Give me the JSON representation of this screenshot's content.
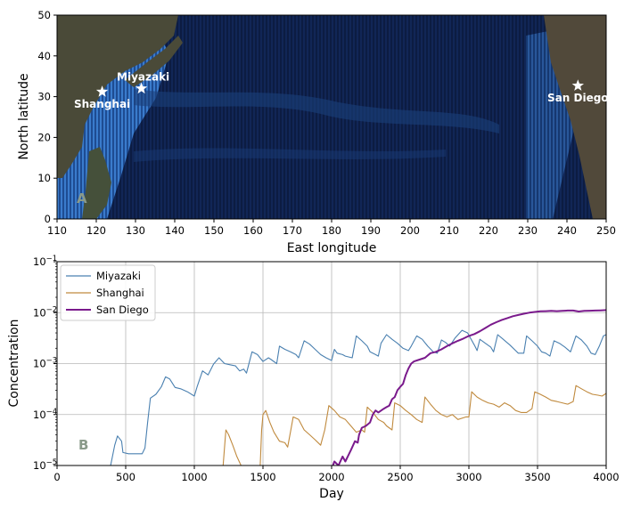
{
  "chart_data": [
    {
      "type": "map",
      "panel_label": "A",
      "xlabel": "East longitude",
      "ylabel": "North latitude",
      "xlim": [
        110,
        250
      ],
      "ylim": [
        0,
        50
      ],
      "xticks": [
        110,
        120,
        130,
        140,
        150,
        160,
        170,
        180,
        190,
        200,
        210,
        220,
        230,
        240,
        250
      ],
      "yticks": [
        0,
        10,
        20,
        30,
        40,
        50
      ],
      "locations": [
        {
          "name": "Miyazaki",
          "lon": 131.5,
          "lat": 32
        },
        {
          "name": "Shanghai",
          "lon": 121.5,
          "lat": 31.2
        },
        {
          "name": "San Diego",
          "lon": 242.8,
          "lat": 32.7
        }
      ],
      "colors": {
        "ocean": "#0b1a3d",
        "current": "#3a7bd5",
        "land": "#4a4a38",
        "marker": "#ffffff"
      }
    },
    {
      "type": "line",
      "panel_label": "B",
      "xlabel": "Day",
      "ylabel": "Concentration",
      "yscale": "log",
      "xlim": [
        0,
        4000
      ],
      "ylim": [
        1e-05,
        0.1
      ],
      "xticks": [
        0,
        500,
        1000,
        1500,
        2000,
        2500,
        3000,
        3500,
        4000
      ],
      "yticks": [
        {
          "value": 1e-05,
          "base": "10",
          "exp": "−5"
        },
        {
          "value": 0.0001,
          "base": "10",
          "exp": "−4"
        },
        {
          "value": 0.001,
          "base": "10",
          "exp": "−3"
        },
        {
          "value": 0.01,
          "base": "10",
          "exp": "−2"
        },
        {
          "value": 0.1,
          "base": "10",
          "exp": "−1"
        }
      ],
      "grid": true,
      "legend_position": "upper-left",
      "series": [
        {
          "name": "Miyazaki",
          "color": "#4a80b0",
          "points": [
            [
              390,
              1e-05
            ],
            [
              420,
              2.5e-05
            ],
            [
              440,
              3.8e-05
            ],
            [
              470,
              3e-05
            ],
            [
              480,
              1.8e-05
            ],
            [
              520,
              1.7e-05
            ],
            [
              560,
              1.7e-05
            ],
            [
              620,
              1.7e-05
            ],
            [
              640,
              2.2e-05
            ],
            [
              660,
              7e-05
            ],
            [
              680,
              0.00021
            ],
            [
              720,
              0.00025
            ],
            [
              760,
              0.00035
            ],
            [
              790,
              0.00055
            ],
            [
              820,
              0.0005
            ],
            [
              860,
              0.00034
            ],
            [
              900,
              0.00032
            ],
            [
              950,
              0.00028
            ],
            [
              1000,
              0.00023
            ],
            [
              1020,
              0.00035
            ],
            [
              1060,
              0.00072
            ],
            [
              1100,
              0.0006
            ],
            [
              1140,
              0.00098
            ],
            [
              1180,
              0.0013
            ],
            [
              1220,
              0.001
            ],
            [
              1260,
              0.00095
            ],
            [
              1300,
              0.0009
            ],
            [
              1330,
              0.00072
            ],
            [
              1360,
              0.00078
            ],
            [
              1380,
              0.00065
            ],
            [
              1420,
              0.0017
            ],
            [
              1460,
              0.0015
            ],
            [
              1500,
              0.0011
            ],
            [
              1540,
              0.0013
            ],
            [
              1560,
              0.0012
            ],
            [
              1600,
              0.001
            ],
            [
              1620,
              0.0022
            ],
            [
              1660,
              0.0019
            ],
            [
              1700,
              0.0017
            ],
            [
              1740,
              0.0015
            ],
            [
              1760,
              0.0013
            ],
            [
              1800,
              0.0028
            ],
            [
              1840,
              0.0024
            ],
            [
              1880,
              0.0019
            ],
            [
              1920,
              0.0015
            ],
            [
              1960,
              0.0013
            ],
            [
              2000,
              0.00115
            ],
            [
              2020,
              0.0019
            ],
            [
              2040,
              0.0016
            ],
            [
              2080,
              0.0015
            ],
            [
              2100,
              0.0014
            ],
            [
              2150,
              0.0013
            ],
            [
              2180,
              0.0035
            ],
            [
              2220,
              0.0028
            ],
            [
              2260,
              0.0022
            ],
            [
              2280,
              0.0017
            ],
            [
              2320,
              0.0015
            ],
            [
              2340,
              0.0014
            ],
            [
              2360,
              0.0025
            ],
            [
              2400,
              0.0037
            ],
            [
              2440,
              0.003
            ],
            [
              2480,
              0.0025
            ],
            [
              2520,
              0.002
            ],
            [
              2560,
              0.0018
            ],
            [
              2580,
              0.0022
            ],
            [
              2620,
              0.0035
            ],
            [
              2660,
              0.003
            ],
            [
              2700,
              0.0022
            ],
            [
              2740,
              0.0017
            ],
            [
              2770,
              0.0016
            ],
            [
              2800,
              0.0029
            ],
            [
              2830,
              0.0026
            ],
            [
              2860,
              0.0022
            ],
            [
              2900,
              0.0032
            ],
            [
              2950,
              0.0045
            ],
            [
              2990,
              0.004
            ],
            [
              3040,
              0.0023
            ],
            [
              3060,
              0.0018
            ],
            [
              3080,
              0.003
            ],
            [
              3120,
              0.0025
            ],
            [
              3160,
              0.0021
            ],
            [
              3180,
              0.0017
            ],
            [
              3210,
              0.0037
            ],
            [
              3250,
              0.003
            ],
            [
              3300,
              0.0023
            ],
            [
              3340,
              0.0018
            ],
            [
              3360,
              0.0016
            ],
            [
              3400,
              0.0016
            ],
            [
              3420,
              0.0035
            ],
            [
              3460,
              0.0028
            ],
            [
              3500,
              0.0022
            ],
            [
              3530,
              0.0017
            ],
            [
              3560,
              0.0016
            ],
            [
              3590,
              0.0014
            ],
            [
              3620,
              0.0028
            ],
            [
              3660,
              0.0025
            ],
            [
              3700,
              0.0021
            ],
            [
              3740,
              0.0017
            ],
            [
              3780,
              0.0035
            ],
            [
              3820,
              0.0029
            ],
            [
              3860,
              0.0022
            ],
            [
              3890,
              0.0016
            ],
            [
              3920,
              0.0015
            ],
            [
              3950,
              0.0022
            ],
            [
              3980,
              0.0035
            ],
            [
              4000,
              0.0037
            ]
          ]
        },
        {
          "name": "Shanghai",
          "color": "#c08a3e",
          "points": [
            [
              1210,
              1e-05
            ],
            [
              1230,
              5e-05
            ],
            [
              1250,
              4e-05
            ],
            [
              1280,
              2.5e-05
            ],
            [
              1310,
              1.5e-05
            ],
            [
              1340,
              1e-05
            ],
            [
              1480,
              1e-05
            ],
            [
              1490,
              5e-05
            ],
            [
              1500,
              0.0001
            ],
            [
              1520,
              0.00012
            ],
            [
              1550,
              7e-05
            ],
            [
              1580,
              4.5e-05
            ],
            [
              1620,
              3e-05
            ],
            [
              1660,
              2.8e-05
            ],
            [
              1680,
              2.3e-05
            ],
            [
              1700,
              4.5e-05
            ],
            [
              1720,
              9e-05
            ],
            [
              1760,
              8e-05
            ],
            [
              1800,
              5e-05
            ],
            [
              1840,
              4e-05
            ],
            [
              1880,
              3.2e-05
            ],
            [
              1920,
              2.5e-05
            ],
            [
              1950,
              5e-05
            ],
            [
              1980,
              0.00015
            ],
            [
              2020,
              0.00012
            ],
            [
              2060,
              9e-05
            ],
            [
              2100,
              8e-05
            ],
            [
              2140,
              6e-05
            ],
            [
              2180,
              4.5e-05
            ],
            [
              2220,
              5e-05
            ],
            [
              2240,
              4.5e-05
            ],
            [
              2260,
              0.00014
            ],
            [
              2300,
              0.00011
            ],
            [
              2340,
              8e-05
            ],
            [
              2380,
              7e-05
            ],
            [
              2400,
              6e-05
            ],
            [
              2440,
              5e-05
            ],
            [
              2460,
              0.00017
            ],
            [
              2500,
              0.00015
            ],
            [
              2540,
              0.00012
            ],
            [
              2580,
              0.0001
            ],
            [
              2620,
              8e-05
            ],
            [
              2660,
              7e-05
            ],
            [
              2680,
              0.00022
            ],
            [
              2720,
              0.00016
            ],
            [
              2760,
              0.00012
            ],
            [
              2800,
              0.0001
            ],
            [
              2840,
              9e-05
            ],
            [
              2880,
              0.0001
            ],
            [
              2920,
              8e-05
            ],
            [
              2980,
              9e-05
            ],
            [
              3000,
              9e-05
            ],
            [
              3020,
              0.00028
            ],
            [
              3060,
              0.00022
            ],
            [
              3100,
              0.00019
            ],
            [
              3140,
              0.00017
            ],
            [
              3180,
              0.00016
            ],
            [
              3220,
              0.00014
            ],
            [
              3260,
              0.00017
            ],
            [
              3300,
              0.00015
            ],
            [
              3340,
              0.00012
            ],
            [
              3380,
              0.00011
            ],
            [
              3420,
              0.00011
            ],
            [
              3460,
              0.00013
            ],
            [
              3480,
              0.00028
            ],
            [
              3520,
              0.00025
            ],
            [
              3560,
              0.00022
            ],
            [
              3600,
              0.00019
            ],
            [
              3640,
              0.00018
            ],
            [
              3680,
              0.00017
            ],
            [
              3720,
              0.00016
            ],
            [
              3760,
              0.00018
            ],
            [
              3780,
              0.00037
            ],
            [
              3820,
              0.00032
            ],
            [
              3860,
              0.00028
            ],
            [
              3900,
              0.00025
            ],
            [
              3940,
              0.00024
            ],
            [
              3970,
              0.00023
            ],
            [
              4000,
              0.00026
            ]
          ]
        },
        {
          "name": "San Diego",
          "color": "#7a1a8c",
          "points": [
            [
              2010,
              1e-05
            ],
            [
              2020,
              1.2e-05
            ],
            [
              2050,
              1e-05
            ],
            [
              2080,
              1.5e-05
            ],
            [
              2100,
              1.2e-05
            ],
            [
              2140,
              2e-05
            ],
            [
              2170,
              3e-05
            ],
            [
              2190,
              2.8e-05
            ],
            [
              2200,
              4e-05
            ],
            [
              2220,
              5.5e-05
            ],
            [
              2250,
              6e-05
            ],
            [
              2280,
              7e-05
            ],
            [
              2300,
              0.0001
            ],
            [
              2320,
              0.00012
            ],
            [
              2340,
              0.00011
            ],
            [
              2380,
              0.00013
            ],
            [
              2400,
              0.00014
            ],
            [
              2420,
              0.00015
            ],
            [
              2440,
              0.0002
            ],
            [
              2460,
              0.00022
            ],
            [
              2480,
              0.0003
            ],
            [
              2500,
              0.00035
            ],
            [
              2520,
              0.0004
            ],
            [
              2540,
              0.0006
            ],
            [
              2560,
              0.0008
            ],
            [
              2580,
              0.001
            ],
            [
              2600,
              0.0011
            ],
            [
              2640,
              0.0012
            ],
            [
              2680,
              0.0013
            ],
            [
              2720,
              0.0016
            ],
            [
              2760,
              0.0017
            ],
            [
              2800,
              0.0019
            ],
            [
              2840,
              0.0022
            ],
            [
              2880,
              0.0025
            ],
            [
              2920,
              0.0028
            ],
            [
              2960,
              0.0031
            ],
            [
              3000,
              0.0035
            ],
            [
              3040,
              0.0038
            ],
            [
              3080,
              0.0043
            ],
            [
              3120,
              0.005
            ],
            [
              3160,
              0.0058
            ],
            [
              3200,
              0.0065
            ],
            [
              3240,
              0.0072
            ],
            [
              3280,
              0.0078
            ],
            [
              3320,
              0.0085
            ],
            [
              3360,
              0.009
            ],
            [
              3400,
              0.0095
            ],
            [
              3440,
              0.01
            ],
            [
              3480,
              0.0103
            ],
            [
              3520,
              0.0106
            ],
            [
              3560,
              0.0107
            ],
            [
              3600,
              0.0108
            ],
            [
              3640,
              0.0107
            ],
            [
              3680,
              0.0108
            ],
            [
              3720,
              0.011
            ],
            [
              3760,
              0.011
            ],
            [
              3800,
              0.0105
            ],
            [
              3840,
              0.0108
            ],
            [
              3880,
              0.0109
            ],
            [
              3920,
              0.011
            ],
            [
              3960,
              0.0111
            ],
            [
              4000,
              0.0112
            ]
          ]
        }
      ]
    }
  ]
}
